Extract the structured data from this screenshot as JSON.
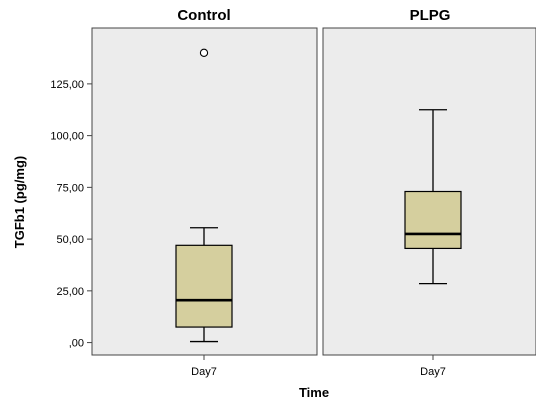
{
  "chart_data": {
    "type": "boxplot",
    "xlabel": "Time",
    "ylabel": "TGFb1 (pg/mg)",
    "ylim": [
      -6,
      152
    ],
    "y_ticks": [
      {
        "value": 0,
        "label": ",00"
      },
      {
        "value": 25,
        "label": "25,00"
      },
      {
        "value": 50,
        "label": "50,00"
      },
      {
        "value": 75,
        "label": "75,00"
      },
      {
        "value": 100,
        "label": "100,00"
      },
      {
        "value": 125,
        "label": "125,00"
      }
    ],
    "grid": false,
    "panel_background": "#ececec",
    "box_color": "#d5cf9e",
    "panels": [
      {
        "title": "Control",
        "category": "Day7",
        "whisker_low": 0.5,
        "q1": 7.5,
        "median": 20.5,
        "q3": 47,
        "whisker_high": 55.5,
        "outliers": [
          140
        ]
      },
      {
        "title": "PLPG",
        "category": "Day7",
        "whisker_low": 28.5,
        "q1": 45.5,
        "median": 52.5,
        "q3": 73,
        "whisker_high": 112.5,
        "outliers": []
      }
    ]
  }
}
